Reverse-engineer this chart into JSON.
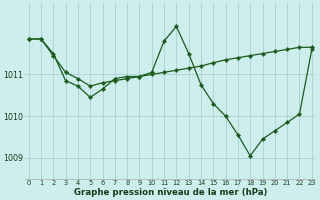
{
  "xlabel": "Graphe pression niveau de la mer (hPa)",
  "background_color": "#ceeeed",
  "grid_color": "#aed4d3",
  "line_color": "#1a5c1a",
  "series1_x": [
    0,
    1,
    2,
    3,
    4,
    5,
    6,
    7,
    8,
    9,
    10,
    11,
    12,
    13,
    14,
    15,
    16,
    17,
    18,
    19,
    20,
    21,
    22,
    23
  ],
  "series1_y": [
    1011.85,
    1011.85,
    1011.5,
    1010.85,
    1010.72,
    1010.45,
    1010.65,
    1010.9,
    1010.95,
    1010.95,
    1011.05,
    1011.8,
    1012.15,
    1011.5,
    1010.75,
    1010.3,
    1010.0,
    1009.55,
    1009.05,
    1009.45,
    1009.65,
    1009.85,
    1010.05,
    1011.6
  ],
  "series2_x": [
    0,
    1,
    2,
    3,
    4,
    5,
    6,
    7,
    8,
    9,
    10,
    11,
    12,
    13,
    14,
    15,
    16,
    17,
    18,
    19,
    20,
    21,
    22,
    23
  ],
  "series2_y": [
    1011.85,
    1011.85,
    1011.45,
    1011.05,
    1010.9,
    1010.72,
    1010.8,
    1010.85,
    1010.9,
    1010.95,
    1011.0,
    1011.05,
    1011.1,
    1011.15,
    1011.2,
    1011.28,
    1011.35,
    1011.4,
    1011.45,
    1011.5,
    1011.55,
    1011.6,
    1011.65,
    1011.65
  ],
  "xticks": [
    0,
    1,
    2,
    3,
    4,
    5,
    6,
    7,
    8,
    9,
    10,
    11,
    12,
    13,
    14,
    15,
    16,
    17,
    18,
    19,
    20,
    21,
    22,
    23
  ],
  "yticks": [
    1009,
    1010,
    1011
  ],
  "ylim": [
    1008.5,
    1012.7
  ],
  "xlim": [
    -0.3,
    23.3
  ]
}
